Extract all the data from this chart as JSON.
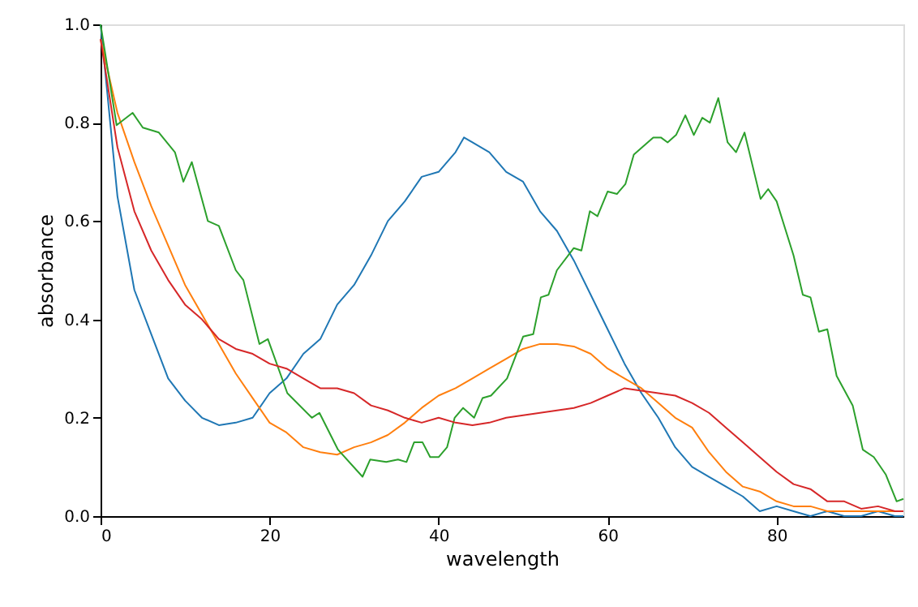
{
  "chart_data": {
    "type": "line",
    "xlabel": "wavelength",
    "ylabel": "absorbance",
    "xlim": [
      0,
      95
    ],
    "ylim": [
      0,
      1
    ],
    "xticks": [
      0,
      20,
      40,
      60,
      80
    ],
    "yticks": [
      {
        "value": 0,
        "label": "0.0"
      },
      {
        "value": 0.2,
        "label": "0.2"
      },
      {
        "value": 0.4,
        "label": "0.4"
      },
      {
        "value": 0.6,
        "label": "0.6"
      },
      {
        "value": 0.8,
        "label": "0.8"
      },
      {
        "value": 1,
        "label": "1.0"
      }
    ],
    "grid": false,
    "marker": "none",
    "line_style": "solid",
    "series": [
      {
        "color": "#1f77b4",
        "x": [
          0,
          2,
          4,
          6,
          8,
          10,
          12,
          14,
          16,
          18,
          20,
          22,
          24,
          26,
          28,
          30,
          32,
          34,
          36,
          38,
          40,
          42,
          43,
          44,
          46,
          48,
          50,
          52,
          54,
          56,
          58,
          60,
          62,
          64,
          66,
          68,
          70,
          72,
          74,
          76,
          78,
          80,
          82,
          84,
          86,
          88,
          90,
          92,
          94,
          95
        ],
        "values": [
          1.0,
          0.65,
          0.46,
          0.37,
          0.28,
          0.235,
          0.2,
          0.185,
          0.19,
          0.2,
          0.25,
          0.28,
          0.33,
          0.36,
          0.43,
          0.47,
          0.53,
          0.6,
          0.64,
          0.69,
          0.7,
          0.74,
          0.77,
          0.76,
          0.74,
          0.7,
          0.68,
          0.62,
          0.58,
          0.52,
          0.45,
          0.38,
          0.31,
          0.25,
          0.2,
          0.14,
          0.1,
          0.08,
          0.06,
          0.04,
          0.01,
          0.02,
          0.01,
          0.0,
          0.01,
          0.0,
          0.0,
          0.01,
          0.0,
          0.0
        ]
      },
      {
        "color": "#ff7f0e",
        "x": [
          0,
          2,
          4,
          6,
          8,
          10,
          12,
          14,
          16,
          18,
          20,
          22,
          24,
          26,
          28,
          30,
          32,
          34,
          36,
          38,
          40,
          42,
          44,
          46,
          48,
          50,
          52,
          54,
          56,
          58,
          60,
          62,
          64,
          66,
          68,
          70,
          72,
          74,
          76,
          78,
          80,
          82,
          84,
          86,
          88,
          90,
          92,
          94,
          95
        ],
        "values": [
          0.97,
          0.82,
          0.72,
          0.63,
          0.55,
          0.47,
          0.41,
          0.35,
          0.29,
          0.24,
          0.19,
          0.17,
          0.14,
          0.13,
          0.125,
          0.14,
          0.15,
          0.165,
          0.19,
          0.22,
          0.245,
          0.26,
          0.28,
          0.3,
          0.32,
          0.34,
          0.35,
          0.35,
          0.345,
          0.33,
          0.3,
          0.28,
          0.26,
          0.23,
          0.2,
          0.18,
          0.13,
          0.09,
          0.06,
          0.05,
          0.03,
          0.02,
          0.02,
          0.01,
          0.01,
          0.01,
          0.01,
          0.01,
          0.01
        ]
      },
      {
        "color": "#2ca02c",
        "x": [
          0,
          1.9,
          3.8,
          5,
          6.9,
          8.8,
          9.8,
          10.8,
          12.7,
          14,
          16,
          16.9,
          18.8,
          19.8,
          22.1,
          25,
          25.9,
          28.1,
          31,
          31.9,
          33.8,
          35.2,
          36.2,
          37.1,
          38.1,
          39,
          40,
          41,
          41.9,
          42.9,
          44.2,
          45.2,
          46.2,
          48.1,
          50,
          51.2,
          52.1,
          53,
          54,
          56,
          56.9,
          57.9,
          58.8,
          60,
          61.1,
          62.1,
          63.1,
          65.4,
          66.3,
          67.1,
          68.1,
          69.2,
          70.2,
          71.2,
          72.1,
          73.1,
          74.2,
          75.2,
          76.2,
          78.1,
          79,
          80,
          82,
          83.1,
          84,
          85,
          86,
          87.1,
          89,
          90.2,
          91.5,
          92.9,
          94.2,
          95
        ],
        "values": [
          1.0,
          0.795,
          0.82,
          0.79,
          0.78,
          0.74,
          0.68,
          0.72,
          0.6,
          0.59,
          0.5,
          0.48,
          0.35,
          0.36,
          0.25,
          0.2,
          0.21,
          0.135,
          0.08,
          0.115,
          0.11,
          0.115,
          0.11,
          0.15,
          0.15,
          0.12,
          0.12,
          0.14,
          0.2,
          0.22,
          0.2,
          0.24,
          0.245,
          0.28,
          0.365,
          0.37,
          0.445,
          0.45,
          0.5,
          0.545,
          0.54,
          0.62,
          0.61,
          0.66,
          0.655,
          0.675,
          0.735,
          0.77,
          0.77,
          0.76,
          0.775,
          0.815,
          0.775,
          0.81,
          0.8,
          0.85,
          0.76,
          0.74,
          0.78,
          0.645,
          0.665,
          0.64,
          0.53,
          0.45,
          0.445,
          0.375,
          0.38,
          0.285,
          0.225,
          0.135,
          0.12,
          0.085,
          0.03,
          0.035
        ]
      },
      {
        "color": "#d62728",
        "x": [
          0,
          2,
          4,
          6,
          8,
          10,
          12,
          14,
          16,
          18,
          20,
          22,
          24,
          26,
          28,
          30,
          32,
          34,
          36,
          38,
          40,
          42,
          44,
          46,
          48,
          50,
          52,
          54,
          56,
          58,
          60,
          62,
          64,
          66,
          68,
          70,
          72,
          74,
          76,
          78,
          80,
          82,
          84,
          86,
          88,
          90,
          92,
          94,
          95
        ],
        "values": [
          0.97,
          0.75,
          0.62,
          0.54,
          0.48,
          0.43,
          0.4,
          0.36,
          0.34,
          0.33,
          0.31,
          0.3,
          0.28,
          0.26,
          0.26,
          0.25,
          0.225,
          0.215,
          0.2,
          0.19,
          0.2,
          0.19,
          0.185,
          0.19,
          0.2,
          0.205,
          0.21,
          0.215,
          0.22,
          0.23,
          0.245,
          0.26,
          0.255,
          0.25,
          0.245,
          0.23,
          0.21,
          0.18,
          0.15,
          0.12,
          0.09,
          0.065,
          0.055,
          0.03,
          0.03,
          0.015,
          0.02,
          0.01,
          0.01
        ]
      }
    ]
  }
}
